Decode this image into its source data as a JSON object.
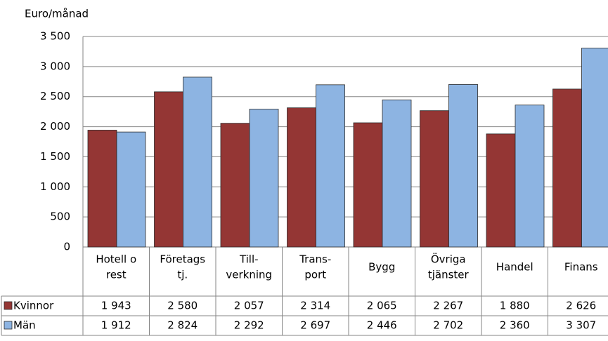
{
  "chart_data": {
    "type": "bar",
    "y_label": "Euro/månad",
    "categories": [
      [
        "Hotell o",
        "rest"
      ],
      [
        "Företags",
        "tj."
      ],
      [
        "Till-",
        "verkning"
      ],
      [
        "Trans-",
        "port"
      ],
      [
        "Bygg"
      ],
      [
        "Övriga",
        "tjänster"
      ],
      [
        "Handel"
      ],
      [
        "Finans"
      ]
    ],
    "series": [
      {
        "name": "Kvinnor",
        "color": "#943634",
        "values": [
          1943,
          2580,
          2057,
          2314,
          2065,
          2267,
          1880,
          2626
        ],
        "value_labels": [
          "1 943",
          "2 580",
          "2 057",
          "2 314",
          "2 065",
          "2 267",
          "1 880",
          "2 626"
        ]
      },
      {
        "name": "Män",
        "color": "#8db4e2",
        "values": [
          1912,
          2824,
          2292,
          2697,
          2446,
          2702,
          2360,
          3307
        ],
        "value_labels": [
          "1 912",
          "2 824",
          "2 292",
          "2 697",
          "2 446",
          "2 702",
          "2 360",
          "3 307"
        ]
      }
    ],
    "ylim": [
      0,
      3500
    ],
    "yticks": [
      0,
      500,
      {
        "value": 1000,
        "label": "1 000"
      },
      {
        "value": 1500,
        "label": "1 500"
      },
      {
        "value": 2000,
        "label": "2 000"
      },
      {
        "value": 2500,
        "label": "2 500"
      },
      {
        "value": 3000,
        "label": "3 000"
      },
      {
        "value": 3500,
        "label": "3 500"
      }
    ],
    "grid": true
  }
}
